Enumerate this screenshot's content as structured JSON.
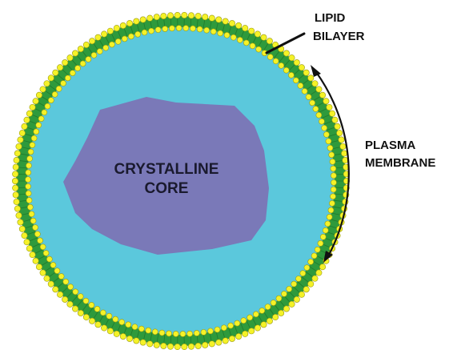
{
  "labels": {
    "lipid_bilayer": [
      "LIPID",
      "BILAYER"
    ],
    "plasma_membrane": [
      "PLASMA",
      "MEMBRANE"
    ],
    "crystalline_core": [
      "CRYSTALLINE",
      "CORE"
    ]
  },
  "colors": {
    "cytoplasm": "#5bc8dc",
    "core": "#7a79b8",
    "lipid_tail": "#2e9a3c",
    "lipid_head": "#f5f228",
    "lipid_head_stroke": "#9a9a10",
    "annotation": "#111111"
  }
}
